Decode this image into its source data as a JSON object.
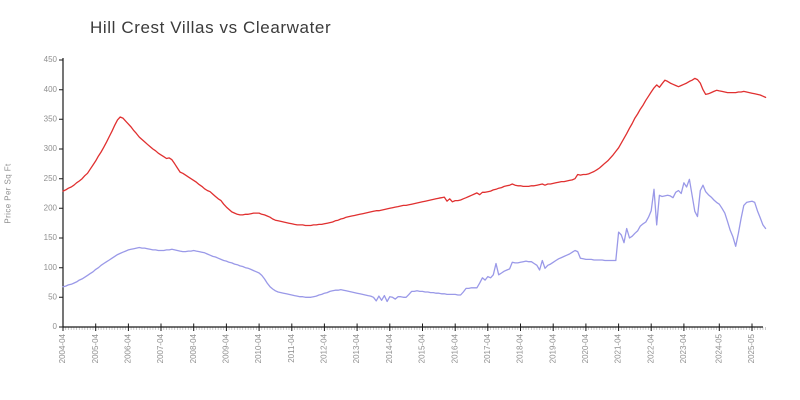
{
  "chart_data": {
    "type": "line",
    "title": "Hill Crest Villas vs Clearwater",
    "xlabel": "",
    "ylabel": "Price Per Sq Ft",
    "ylim": [
      0,
      450
    ],
    "y_ticks": [
      0,
      50,
      100,
      150,
      200,
      250,
      300,
      350,
      400,
      450
    ],
    "grid": false,
    "legend": "none",
    "x_unit": "months since 2004-04",
    "x_tick_labels": [
      {
        "label": "2004-04",
        "month": 0
      },
      {
        "label": "2005-04",
        "month": 12
      },
      {
        "label": "2006-04",
        "month": 24
      },
      {
        "label": "2007-04",
        "month": 36
      },
      {
        "label": "2008-04",
        "month": 48
      },
      {
        "label": "2009-04",
        "month": 60
      },
      {
        "label": "2010-04",
        "month": 72
      },
      {
        "label": "2011-04",
        "month": 84
      },
      {
        "label": "2012-04",
        "month": 96
      },
      {
        "label": "2013-04",
        "month": 108
      },
      {
        "label": "2014-04",
        "month": 120
      },
      {
        "label": "2015-04",
        "month": 132
      },
      {
        "label": "2016-04",
        "month": 144
      },
      {
        "label": "2017-04",
        "month": 156
      },
      {
        "label": "2018-04",
        "month": 168
      },
      {
        "label": "2019-04",
        "month": 180
      },
      {
        "label": "2020-04",
        "month": 192
      },
      {
        "label": "2021-04",
        "month": 204
      },
      {
        "label": "2022-04",
        "month": 216
      },
      {
        "label": "2023-04",
        "month": 228
      },
      {
        "label": "2024-05",
        "month": 241
      },
      {
        "label": "2025-05",
        "month": 253
      }
    ],
    "series": [
      {
        "name": "Hill Crest Villas",
        "color": "#e03030",
        "start_month": "2004-04",
        "values": [
          229,
          231,
          234,
          236,
          239,
          243,
          246,
          250,
          255,
          259,
          266,
          273,
          280,
          288,
          295,
          303,
          312,
          321,
          330,
          340,
          349,
          354,
          352,
          347,
          342,
          337,
          331,
          326,
          320,
          316,
          312,
          308,
          304,
          300,
          297,
          293,
          290,
          287,
          284,
          285,
          282,
          275,
          268,
          261,
          259,
          256,
          253,
          250,
          247,
          244,
          240,
          237,
          233,
          230,
          228,
          224,
          220,
          216,
          213,
          207,
          202,
          198,
          194,
          192,
          190,
          189,
          189,
          190,
          190,
          191,
          192,
          192,
          192,
          190,
          189,
          187,
          185,
          182,
          180,
          179,
          178,
          177,
          176,
          175,
          174,
          173,
          172,
          172,
          172,
          171,
          171,
          171,
          172,
          172,
          173,
          173,
          174,
          175,
          176,
          177,
          179,
          180,
          182,
          183,
          185,
          186,
          187,
          188,
          189,
          190,
          191,
          192,
          193,
          194,
          195,
          196,
          196,
          197,
          198,
          199,
          200,
          201,
          202,
          203,
          204,
          205,
          205,
          206,
          207,
          208,
          209,
          210,
          211,
          212,
          213,
          214,
          215,
          216,
          217,
          218,
          219,
          212,
          216,
          211,
          213,
          213,
          214,
          216,
          218,
          220,
          222,
          224,
          226,
          223,
          227,
          227,
          228,
          229,
          231,
          232,
          234,
          235,
          237,
          238,
          239,
          241,
          239,
          238,
          238,
          237,
          237,
          237,
          238,
          238,
          239,
          240,
          241,
          239,
          241,
          241,
          242,
          243,
          244,
          245,
          245,
          246,
          247,
          248,
          250,
          257,
          256,
          257,
          257,
          258,
          260,
          262,
          265,
          268,
          272,
          276,
          280,
          285,
          290,
          296,
          302,
          310,
          318,
          326,
          335,
          343,
          352,
          359,
          367,
          374,
          382,
          389,
          396,
          403,
          408,
          404,
          410,
          416,
          414,
          411,
          409,
          407,
          405,
          407,
          409,
          411,
          414,
          416,
          419,
          417,
          411,
          400,
          392,
          393,
          395,
          397,
          399,
          398,
          397,
          396,
          395,
          395,
          395,
          395,
          396,
          396,
          397,
          396,
          395,
          394,
          393,
          392,
          391,
          389,
          387
        ]
      },
      {
        "name": "Clearwater",
        "color": "#9a99e8",
        "start_month": "2004-04",
        "values": [
          68,
          69,
          71,
          72,
          74,
          76,
          79,
          81,
          84,
          87,
          90,
          93,
          97,
          100,
          104,
          107,
          110,
          113,
          116,
          119,
          122,
          124,
          126,
          128,
          130,
          131,
          132,
          133,
          134,
          133,
          133,
          132,
          131,
          130,
          130,
          129,
          129,
          129,
          130,
          130,
          131,
          130,
          129,
          128,
          127,
          127,
          128,
          128,
          129,
          128,
          127,
          126,
          125,
          123,
          121,
          119,
          118,
          116,
          114,
          112,
          111,
          109,
          108,
          106,
          105,
          103,
          102,
          100,
          99,
          97,
          95,
          93,
          91,
          87,
          81,
          74,
          68,
          64,
          61,
          59,
          58,
          57,
          56,
          55,
          54,
          53,
          52,
          51,
          51,
          50,
          50,
          50,
          51,
          52,
          54,
          55,
          57,
          58,
          60,
          61,
          62,
          62,
          63,
          62,
          61,
          60,
          59,
          58,
          57,
          56,
          55,
          54,
          53,
          52,
          50,
          44,
          52,
          45,
          53,
          43,
          51,
          50,
          47,
          51,
          51,
          50,
          50,
          55,
          60,
          60,
          61,
          60,
          60,
          59,
          59,
          58,
          58,
          57,
          57,
          56,
          56,
          55,
          55,
          55,
          55,
          54,
          54,
          59,
          65,
          65,
          66,
          66,
          66,
          74,
          83,
          79,
          85,
          83,
          88,
          107,
          88,
          91,
          94,
          96,
          98,
          109,
          108,
          108,
          109,
          110,
          111,
          110,
          110,
          107,
          104,
          96,
          112,
          99,
          104,
          106,
          109,
          112,
          115,
          117,
          119,
          121,
          123,
          126,
          129,
          127,
          116,
          115,
          114,
          114,
          114,
          113,
          113,
          113,
          113,
          112,
          112,
          112,
          112,
          112,
          160,
          155,
          142,
          166,
          150,
          153,
          158,
          162,
          170,
          174,
          177,
          185,
          196,
          232,
          172,
          222,
          220,
          221,
          222,
          221,
          218,
          227,
          230,
          225,
          243,
          236,
          249,
          222,
          195,
          186,
          230,
          239,
          228,
          223,
          219,
          214,
          210,
          207,
          200,
          192,
          178,
          163,
          152,
          136,
          158,
          183,
          205,
          210,
          211,
          212,
          210,
          196,
          184,
          172,
          166
        ]
      }
    ],
    "style": {
      "axis_color": "#1a1a1a",
      "tick_label_color": "#8f8f8f",
      "minor_tick_color": "#b5b5b5",
      "background": "#ffffff"
    }
  }
}
